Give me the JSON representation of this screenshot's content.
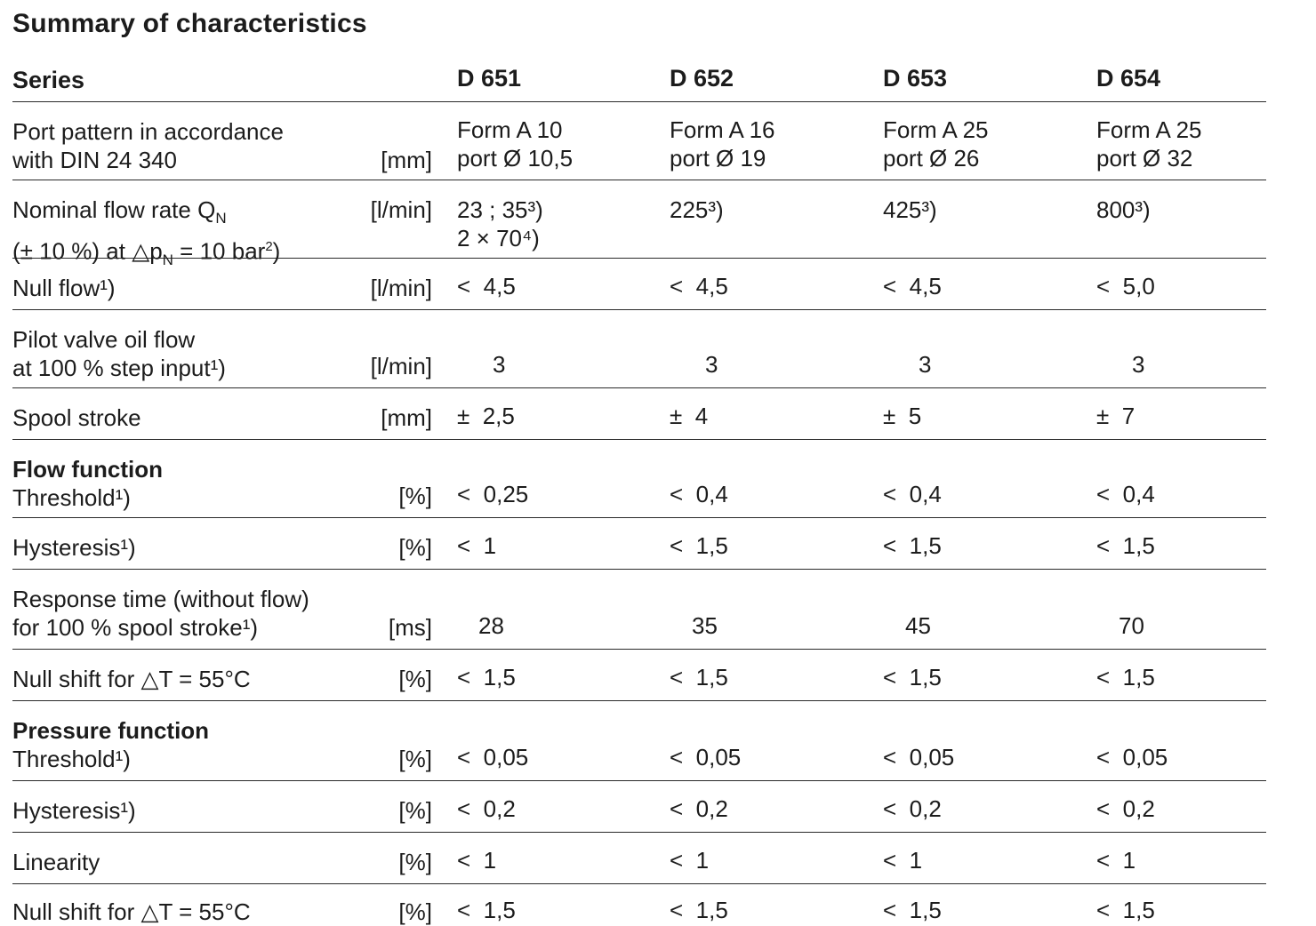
{
  "title": "Summary of characteristics",
  "header": {
    "label": "Series",
    "cols": [
      "D 651",
      "D 652",
      "D 653",
      "D 654"
    ]
  },
  "rows": [
    {
      "label1": "Port pattern in accordance",
      "label2": "with DIN 24 340",
      "unit": "[mm]",
      "cols": [
        [
          "Form A 10",
          "port Ø 10,5"
        ],
        [
          "Form A 16",
          "port Ø 19"
        ],
        [
          "Form A 25",
          "port Ø 26"
        ],
        [
          "Form A 25",
          "port Ø 32"
        ]
      ]
    },
    {
      "label1": "Nominal flow rate Q",
      "label1_sub": "N",
      "label2": "(± 10 %) at △p",
      "label2_sub": "N",
      "label2_tail": " = 10 bar",
      "label2_sup": "2",
      "label2_end": ")",
      "unit": "[l/min]",
      "cols": [
        [
          "23 ; 35³)",
          "2 × 70⁴)"
        ],
        [
          "225³)"
        ],
        [
          "425³)"
        ],
        [
          "800³)"
        ]
      ]
    },
    {
      "label1": "Null flow¹)",
      "unit": "[l/min]",
      "cols": [
        [
          "<  4,5"
        ],
        [
          "<  4,5"
        ],
        [
          "<  4,5"
        ],
        [
          "<  5,0"
        ]
      ]
    },
    {
      "label1": "Pilot valve oil flow",
      "label2": "at 100 % step input¹)",
      "unit": "[l/min]",
      "cols": [
        [
          "3"
        ],
        [
          "3"
        ],
        [
          "3"
        ],
        [
          "3"
        ]
      ]
    },
    {
      "label1": "Spool stroke",
      "unit": "[mm]",
      "cols": [
        [
          "±  2,5"
        ],
        [
          "±  4"
        ],
        [
          "±  5"
        ],
        [
          "±  7"
        ]
      ]
    },
    {
      "heading": "Flow function",
      "label2": "Threshold¹)",
      "unit": "[%]",
      "cols": [
        [
          "<  0,25"
        ],
        [
          "<  0,4"
        ],
        [
          "<  0,4"
        ],
        [
          "<  0,4"
        ]
      ]
    },
    {
      "label1": "Hysteresis¹)",
      "unit": "[%]",
      "cols": [
        [
          "<  1"
        ],
        [
          "<  1,5"
        ],
        [
          "<  1,5"
        ],
        [
          "<  1,5"
        ]
      ]
    },
    {
      "label1": "Response time (without flow)",
      "label2": "for 100 % spool stroke¹)",
      "unit": "[ms]",
      "cols": [
        [
          "28"
        ],
        [
          "35"
        ],
        [
          "45"
        ],
        [
          "70"
        ]
      ]
    },
    {
      "label1": "Null shift for △T = 55°C",
      "unit": "[%]",
      "cols": [
        [
          "<  1,5"
        ],
        [
          "<  1,5"
        ],
        [
          "<  1,5"
        ],
        [
          "<  1,5"
        ]
      ]
    },
    {
      "heading": "Pressure function",
      "label2": "Threshold¹)",
      "unit": "[%]",
      "cols": [
        [
          "<  0,05"
        ],
        [
          "<  0,05"
        ],
        [
          "<  0,05"
        ],
        [
          "<  0,05"
        ]
      ]
    },
    {
      "label1": "Hysteresis¹)",
      "unit": "[%]",
      "cols": [
        [
          "<  0,2"
        ],
        [
          "<  0,2"
        ],
        [
          "<  0,2"
        ],
        [
          "<  0,2"
        ]
      ]
    },
    {
      "label1": "Linearity",
      "unit": "[%]",
      "cols": [
        [
          "<  1"
        ],
        [
          "<  1"
        ],
        [
          "<  1"
        ],
        [
          "<  1"
        ]
      ]
    },
    {
      "label1": "Null shift for △T = 55°C",
      "unit": "[%]",
      "cols": [
        [
          "<  1,5"
        ],
        [
          "<  1,5"
        ],
        [
          "<  1,5"
        ],
        [
          "<  1,5"
        ]
      ]
    }
  ]
}
